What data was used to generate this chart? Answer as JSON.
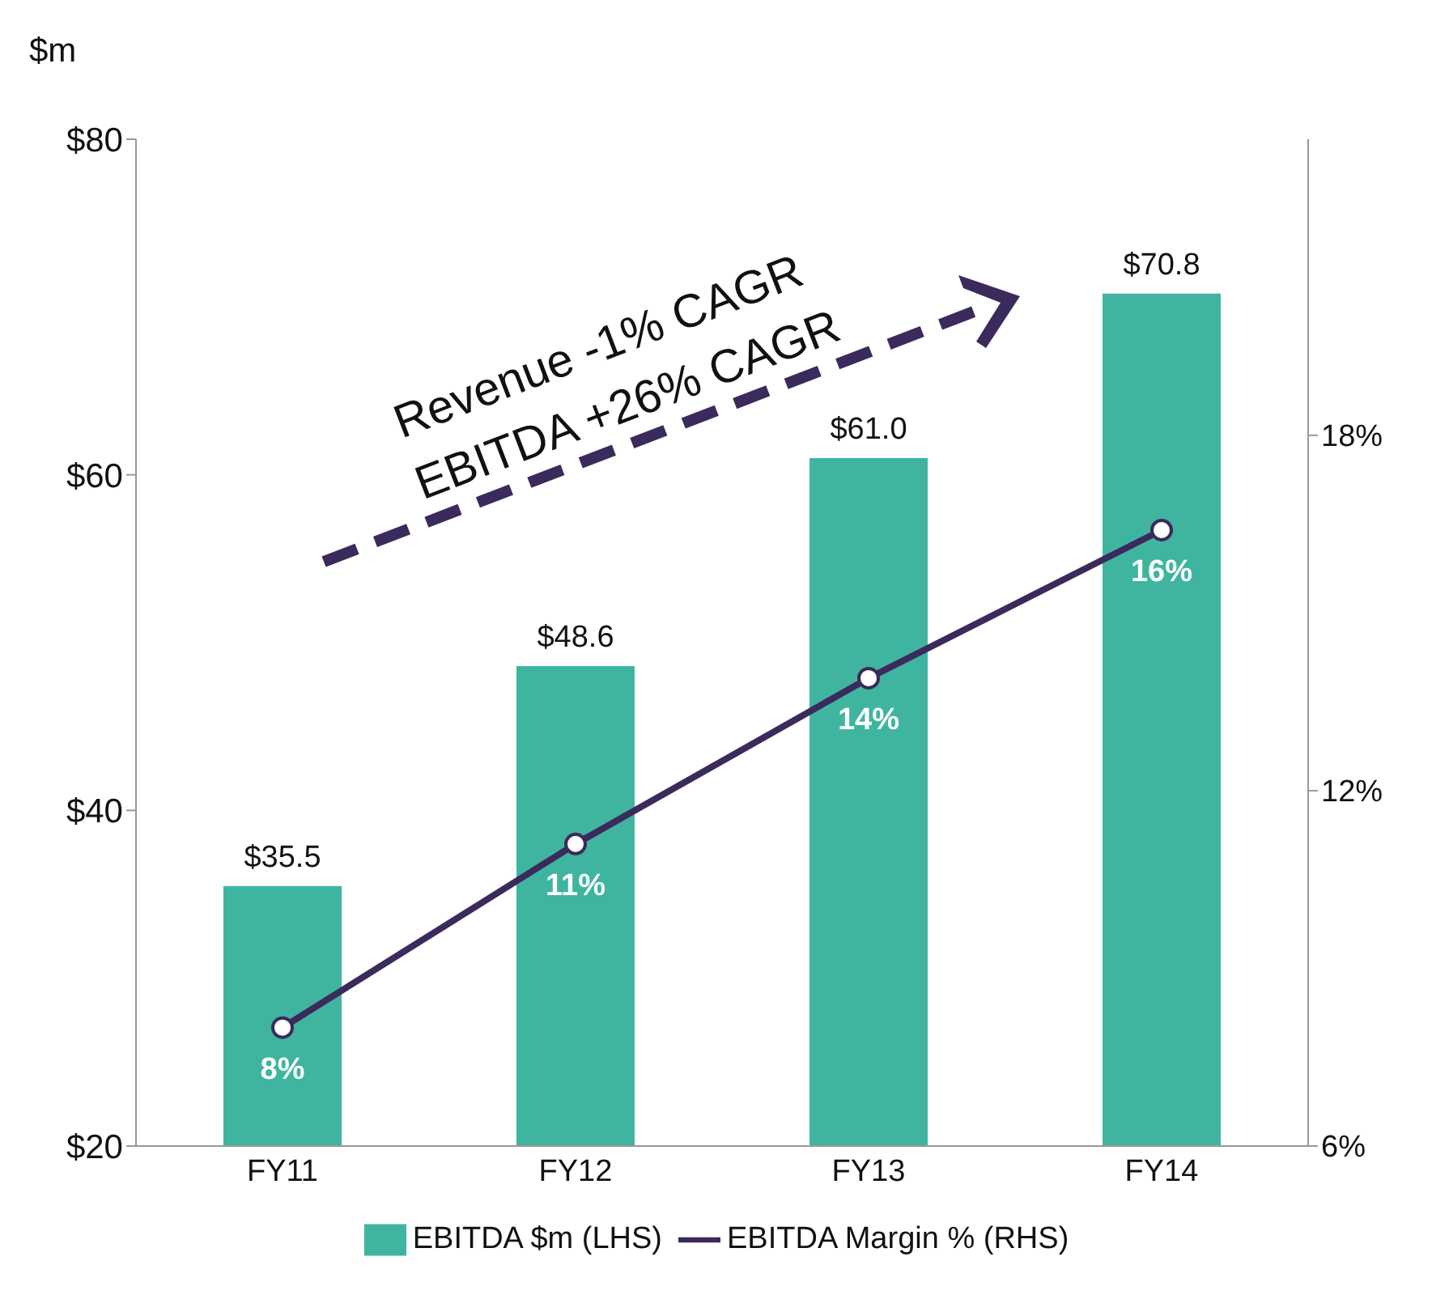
{
  "chart_data": {
    "type": "bar",
    "ylabel": "$m",
    "categories": [
      "FY11",
      "FY12",
      "FY13",
      "FY14"
    ],
    "series": [
      {
        "name": "EBITDA $m (LHS)",
        "color": "#3fb5a0",
        "values": [
          35.5,
          48.6,
          61.0,
          70.8
        ],
        "value_labels": [
          "$35.5",
          "$48.6",
          "$61.0",
          "$70.8"
        ]
      },
      {
        "name": "EBITDA Margin % (RHS)",
        "type": "line",
        "axis": "y2",
        "color": "#3b2a5c",
        "marker": "circle",
        "values": [
          8.0,
          11.1,
          13.9,
          16.4
        ],
        "value_labels": [
          "8%",
          "11%",
          "14%",
          "16%"
        ]
      }
    ],
    "ylim": [
      20,
      80
    ],
    "yticks": [
      {
        "value": 20,
        "label": "$20"
      },
      {
        "value": 40,
        "label": "$40"
      },
      {
        "value": 60,
        "label": "$60"
      },
      {
        "value": 80,
        "label": "$80"
      }
    ],
    "y2lim": [
      6,
      23
    ],
    "y2ticks": [
      {
        "value": 6,
        "label": "6%"
      },
      {
        "value": 12,
        "label": "12%"
      },
      {
        "value": 18,
        "label": "18%"
      }
    ],
    "annotations": [
      "Revenue -1% CAGR",
      "EBITDA +26% CAGR"
    ],
    "grid": false,
    "legend": "bottom"
  }
}
